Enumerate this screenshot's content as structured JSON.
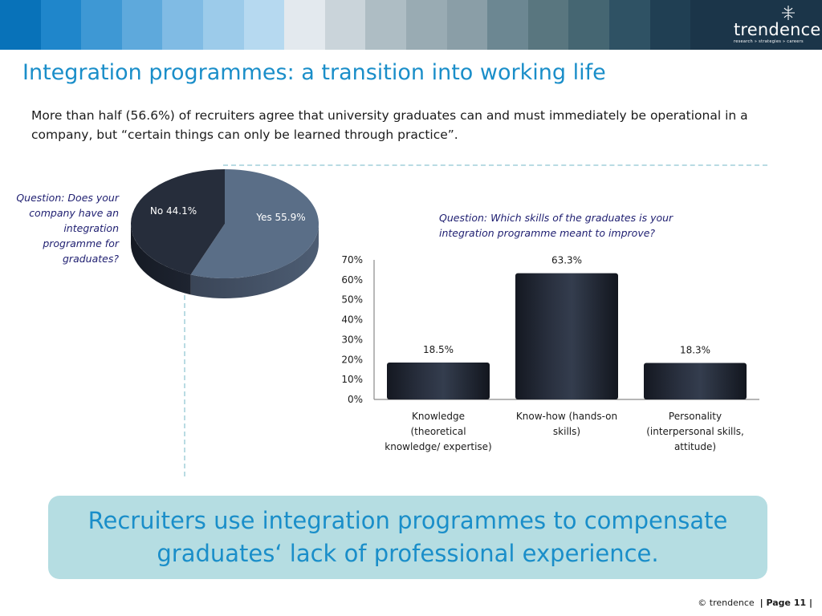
{
  "header": {
    "band_colors": [
      "#0872b9",
      "#1f86cb",
      "#3e98d4",
      "#5ea9dc",
      "#80bbe4",
      "#9ccbea",
      "#b6d9f0",
      "#e3e9ee",
      "#cad4da",
      "#aebdc4",
      "#99abb3",
      "#8a9ea7",
      "#6c8792",
      "#59767f",
      "#456672",
      "#2f5264",
      "#203f53"
    ],
    "logo_name": "trendence",
    "logo_tagline": "research » strategies » careers"
  },
  "title": "Integration programmes: a transition into working life",
  "intro": "More than half (56.6%) of recruiters agree that university graduates can and must immediately be operational in a company, but “certain things can only be learned through practice”.",
  "pie_question": "Question: Does your company have an integration programme for graduates?",
  "bar_question": "Question: Which skills of the graduates is your integration programme meant to improve?",
  "chart_data": [
    {
      "type": "pie",
      "labels": [
        "Yes",
        "No"
      ],
      "values": [
        55.9,
        44.1
      ],
      "data_labels": [
        "Yes 55.9%",
        "No 44.1%"
      ],
      "colors": [
        "#5a6e87",
        "#262d3b"
      ]
    },
    {
      "type": "bar",
      "categories": [
        "Knowledge (theoretical knowledge/ expertise)",
        "Know-how (hands-on skills)",
        "Personality (interpersonal skills, attitude)"
      ],
      "category_lines": [
        [
          "Knowledge",
          "(theoretical",
          "knowledge/ expertise)"
        ],
        [
          "Know-how (hands-on",
          "skills)"
        ],
        [
          "Personality",
          "(interpersonal skills,",
          "attitude)"
        ]
      ],
      "values": [
        18.5,
        63.3,
        18.3
      ],
      "data_labels": [
        "18.5%",
        "63.3%",
        "18.3%"
      ],
      "ylim": [
        0,
        70
      ],
      "yticks": [
        "0%",
        "10%",
        "20%",
        "30%",
        "40%",
        "50%",
        "60%",
        "70%"
      ],
      "bar_color": "#1f2533",
      "grid": false
    }
  ],
  "callout": "Recruiters use integration programmes to compensate graduates‘ lack of professional experience.",
  "footer": {
    "copyright": "© trendence",
    "page": "| Page 11 |"
  }
}
